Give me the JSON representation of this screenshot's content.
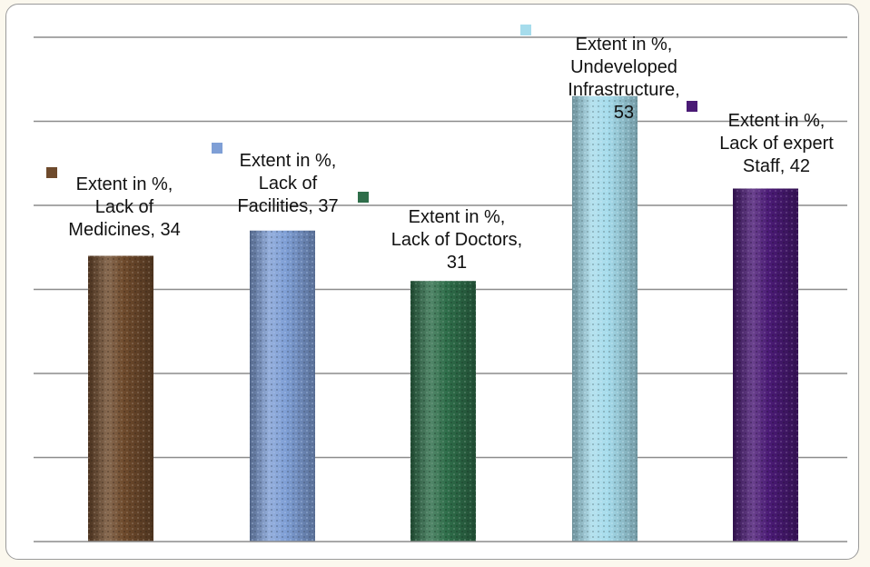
{
  "chart_data": {
    "type": "bar",
    "title": "",
    "xlabel": "",
    "ylabel": "",
    "ylim": [
      0,
      60
    ],
    "y_gridlines": [
      10,
      20,
      30,
      40,
      50,
      60
    ],
    "grid": true,
    "series_name": "Extent in %",
    "categories": [
      "Lack of Medicines",
      "Lack of Facilities",
      "Lack of Doctors",
      "Undeveloped Infrastructure",
      "Lack of expert Staff"
    ],
    "values": [
      34,
      37,
      31,
      53,
      42
    ],
    "colors": [
      "#6e4a2c",
      "#7f9fd6",
      "#2f6e4a",
      "#a6dcec",
      "#4a1a75"
    ],
    "data_labels": [
      [
        "Extent in %,",
        "Lack of",
        "Medicines, 34"
      ],
      [
        "Extent in %,",
        "Lack of",
        "Facilities, 37"
      ],
      [
        "Extent in %,",
        "Lack of Doctors,",
        "31"
      ],
      [
        "Extent in %,",
        "Undeveloped",
        "Infrastructure,",
        "53"
      ],
      [
        "Extent in %,",
        "Lack of expert",
        "Staff, 42"
      ]
    ]
  }
}
